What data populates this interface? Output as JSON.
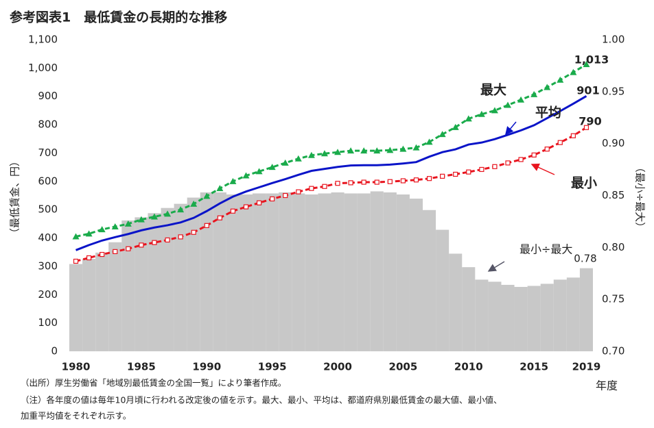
{
  "chart_data": {
    "type": "line",
    "title": "参考図表1　最低賃金の長期的な推移",
    "ylabel": "（最低賃金、円）",
    "y2label": "（最小÷最大）",
    "xlabel": "年度",
    "notes": [
      "（出所）厚生労働省「地域別最低賃金の全国一覧」により筆者作成。",
      "（注）各年度の値は毎年10月頃に行われる改定後の値を示す。最大、最小、平均は、都道府県別最低賃金の最大値、最小値、",
      "加重平均値をそれぞれ示す。"
    ],
    "x": [
      1980,
      1981,
      1982,
      1983,
      1984,
      1985,
      1986,
      1987,
      1988,
      1989,
      1990,
      1991,
      1992,
      1993,
      1994,
      1995,
      1996,
      1997,
      1998,
      1999,
      2000,
      2001,
      2002,
      2003,
      2004,
      2005,
      2006,
      2007,
      2008,
      2009,
      2010,
      2011,
      2012,
      2013,
      2014,
      2015,
      2016,
      2017,
      2018,
      2019
    ],
    "xlim": [
      1979.5,
      2019.5
    ],
    "xticks": [
      1980,
      1985,
      1990,
      1995,
      2000,
      2005,
      2010,
      2015,
      2019
    ],
    "ylim": [
      0,
      1100
    ],
    "yticks": [
      0,
      100,
      200,
      300,
      400,
      500,
      600,
      700,
      800,
      900,
      {
        "value": 1000,
        "label": "1,000"
      },
      {
        "value": 1100,
        "label": "1,100"
      }
    ],
    "y2lim": [
      0.7,
      1.0
    ],
    "y2ticks": [
      {
        "value": 0.7,
        "label": "0.70"
      },
      0.75,
      {
        "value": 0.8,
        "label": "0.80"
      },
      0.85,
      {
        "value": 0.9,
        "label": "0.90"
      },
      0.95,
      {
        "value": 1.0,
        "label": "1.00"
      }
    ],
    "series": [
      {
        "name": "最大",
        "color": "#1aab4b",
        "style": "dashed",
        "marker": "triangle",
        "values": [
          405,
          415,
          430,
          440,
          450,
          465,
          475,
          485,
          500,
          520,
          548,
          575,
          600,
          620,
          635,
          650,
          665,
          680,
          692,
          698,
          703,
          708,
          708,
          708,
          710,
          714,
          719,
          739,
          766,
          791,
          821,
          837,
          850,
          869,
          888,
          907,
          932,
          958,
          985,
          1013
        ],
        "value_labels": [
          null,
          null,
          null,
          null,
          null,
          null,
          null,
          null,
          null,
          null,
          null,
          null,
          null,
          null,
          null,
          null,
          null,
          null,
          null,
          null,
          null,
          null,
          null,
          null,
          null,
          null,
          null,
          null,
          null,
          null,
          null,
          null,
          null,
          null,
          null,
          null,
          null,
          null,
          null,
          "1,013"
        ]
      },
      {
        "name": "平均",
        "color": "#0a14c8",
        "style": "solid",
        "marker": "none",
        "values": [
          357,
          375,
          391,
          403,
          414,
          427,
          437,
          445,
          455,
          471,
          495,
          522,
          546,
          564,
          579,
          594,
          608,
          623,
          637,
          644,
          651,
          656,
          657,
          657,
          659,
          663,
          668,
          687,
          703,
          713,
          730,
          737,
          749,
          764,
          780,
          798,
          823,
          848,
          874,
          901
        ],
        "value_labels": [
          null,
          null,
          null,
          null,
          null,
          null,
          null,
          null,
          null,
          null,
          null,
          null,
          null,
          null,
          null,
          null,
          null,
          null,
          null,
          null,
          null,
          null,
          null,
          null,
          null,
          null,
          null,
          null,
          null,
          null,
          null,
          null,
          null,
          null,
          null,
          null,
          null,
          null,
          null,
          "901"
        ]
      },
      {
        "name": "最小",
        "color": "#e8141e",
        "style": "dashed",
        "marker": "square",
        "values": [
          318,
          330,
          342,
          352,
          362,
          375,
          384,
          393,
          404,
          420,
          444,
          471,
          495,
          510,
          524,
          538,
          550,
          563,
          575,
          582,
          593,
          595,
          597,
          597,
          599,
          602,
          605,
          610,
          618,
          625,
          633,
          642,
          652,
          665,
          677,
          693,
          714,
          737,
          761,
          790
        ],
        "value_labels": [
          null,
          null,
          null,
          null,
          null,
          null,
          null,
          null,
          null,
          null,
          null,
          null,
          null,
          null,
          null,
          null,
          null,
          null,
          null,
          null,
          null,
          null,
          null,
          null,
          null,
          null,
          null,
          null,
          null,
          null,
          null,
          null,
          null,
          null,
          null,
          null,
          null,
          null,
          null,
          "790"
        ]
      },
      {
        "name": "最小÷最大",
        "color": "#c8c8c8",
        "type": "bar",
        "axis": "y2",
        "values": [
          0.784,
          0.789,
          0.795,
          0.805,
          0.826,
          0.829,
          0.833,
          0.838,
          0.842,
          0.848,
          0.853,
          0.853,
          0.851,
          0.851,
          0.852,
          0.852,
          0.853,
          0.852,
          0.851,
          0.852,
          0.853,
          0.852,
          0.852,
          0.854,
          0.853,
          0.851,
          0.847,
          0.836,
          0.817,
          0.794,
          0.781,
          0.769,
          0.767,
          0.764,
          0.762,
          0.763,
          0.765,
          0.769,
          0.771,
          0.78
        ],
        "value_labels": [
          null,
          null,
          null,
          null,
          null,
          null,
          null,
          null,
          null,
          null,
          null,
          null,
          null,
          null,
          null,
          null,
          null,
          null,
          null,
          null,
          null,
          null,
          null,
          null,
          null,
          null,
          null,
          null,
          null,
          null,
          null,
          null,
          null,
          null,
          null,
          null,
          null,
          null,
          null,
          "0.78"
        ]
      }
    ]
  }
}
